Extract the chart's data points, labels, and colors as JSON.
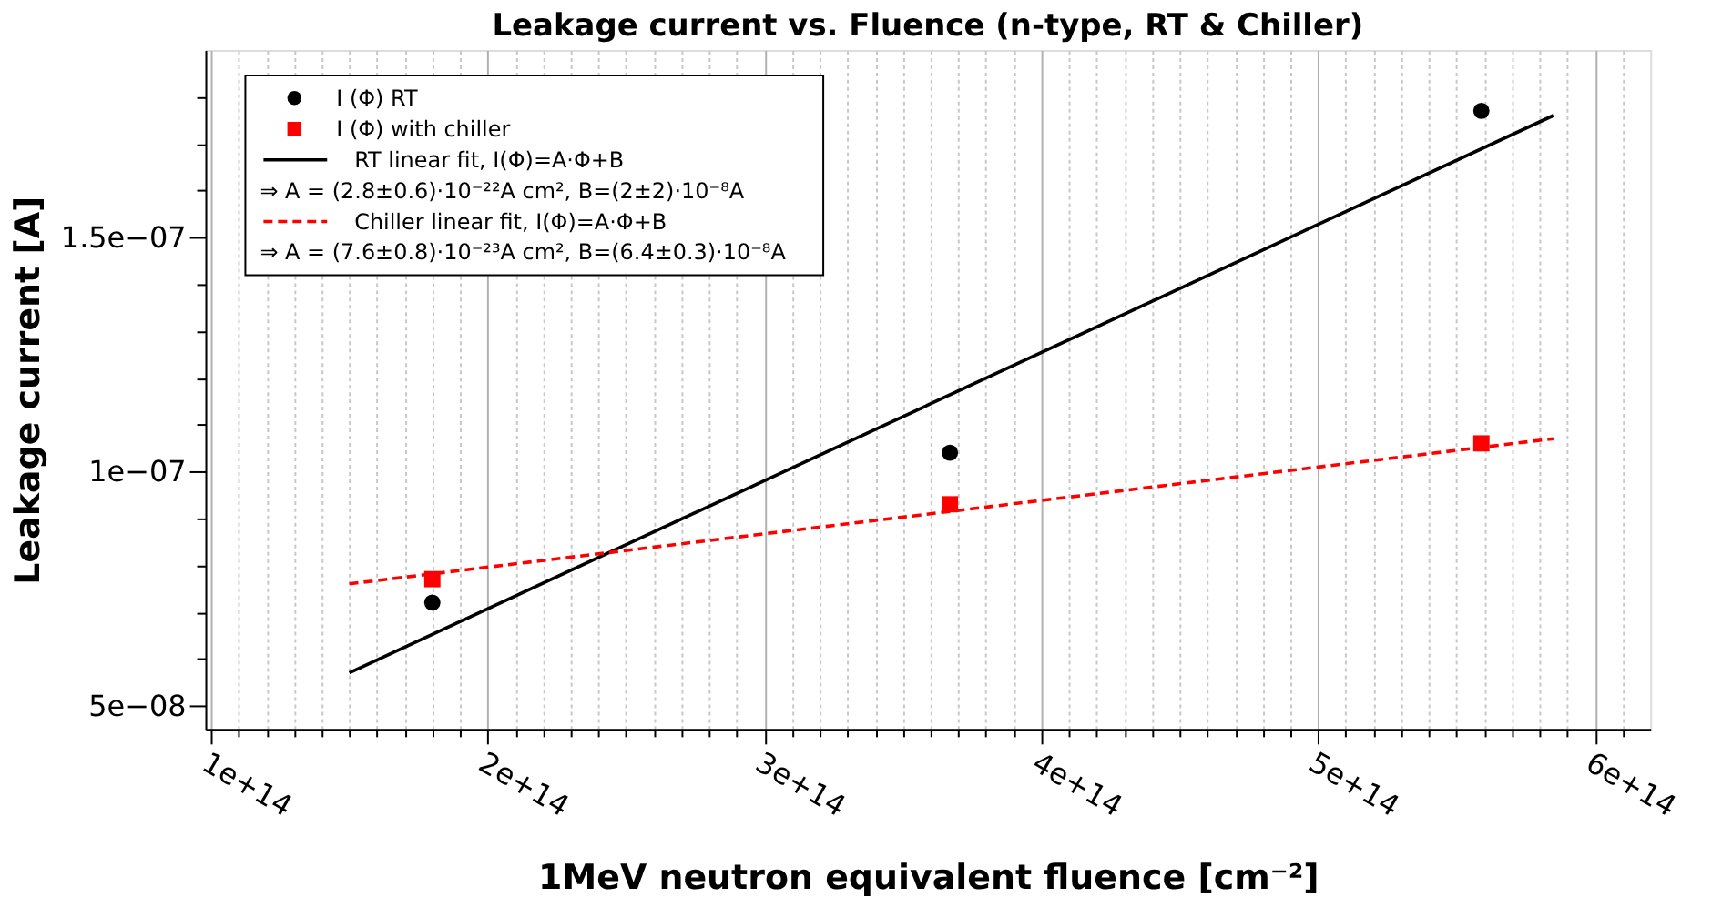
{
  "chart_data": {
    "type": "scatter",
    "title": "Leakage current vs. Fluence (n-type, RT & Chiller)",
    "xlabel": "1MeV neutron equivalent fluence [cm⁻²]",
    "ylabel": "Leakage current [A]",
    "xlim": [
      98000000000000.0,
      620000000000000.0
    ],
    "ylim": [
      4.5e-08,
      1.9e-07
    ],
    "xticks": [
      {
        "value": 100000000000000.0,
        "label": "1e+14"
      },
      {
        "value": 110000000000000.0,
        "label": null
      },
      {
        "value": 120000000000000.0,
        "label": null
      },
      {
        "value": 130000000000000.0,
        "label": null
      },
      {
        "value": 140000000000000.0,
        "label": null
      },
      {
        "value": 150000000000000.0,
        "label": null
      },
      {
        "value": 160000000000000.0,
        "label": null
      },
      {
        "value": 170000000000000.0,
        "label": null
      },
      {
        "value": 180000000000000.0,
        "label": null
      },
      {
        "value": 190000000000000.0,
        "label": null
      },
      {
        "value": 200000000000000.0,
        "label": "2e+14"
      },
      {
        "value": 210000000000000.0,
        "label": null
      },
      {
        "value": 220000000000000.0,
        "label": null
      },
      {
        "value": 230000000000000.0,
        "label": null
      },
      {
        "value": 240000000000000.0,
        "label": null
      },
      {
        "value": 250000000000000.0,
        "label": null
      },
      {
        "value": 260000000000000.0,
        "label": null
      },
      {
        "value": 270000000000000.0,
        "label": null
      },
      {
        "value": 280000000000000.0,
        "label": null
      },
      {
        "value": 290000000000000.0,
        "label": null
      },
      {
        "value": 300000000000000.0,
        "label": "3e+14"
      },
      {
        "value": 310000000000000.0,
        "label": null
      },
      {
        "value": 320000000000000.0,
        "label": null
      },
      {
        "value": 330000000000000.0,
        "label": null
      },
      {
        "value": 340000000000000.0,
        "label": null
      },
      {
        "value": 350000000000000.0,
        "label": null
      },
      {
        "value": 360000000000000.0,
        "label": null
      },
      {
        "value": 370000000000000.0,
        "label": null
      },
      {
        "value": 380000000000000.0,
        "label": null
      },
      {
        "value": 390000000000000.0,
        "label": null
      },
      {
        "value": 400000000000000.0,
        "label": "4e+14"
      },
      {
        "value": 410000000000000.0,
        "label": null
      },
      {
        "value": 420000000000000.0,
        "label": null
      },
      {
        "value": 430000000000000.0,
        "label": null
      },
      {
        "value": 440000000000000.0,
        "label": null
      },
      {
        "value": 450000000000000.0,
        "label": null
      },
      {
        "value": 460000000000000.0,
        "label": null
      },
      {
        "value": 470000000000000.0,
        "label": null
      },
      {
        "value": 480000000000000.0,
        "label": null
      },
      {
        "value": 490000000000000.0,
        "label": null
      },
      {
        "value": 500000000000000.0,
        "label": "5e+14"
      },
      {
        "value": 510000000000000.0,
        "label": null
      },
      {
        "value": 520000000000000.0,
        "label": null
      },
      {
        "value": 530000000000000.0,
        "label": null
      },
      {
        "value": 540000000000000.0,
        "label": null
      },
      {
        "value": 550000000000000.0,
        "label": null
      },
      {
        "value": 560000000000000.0,
        "label": null
      },
      {
        "value": 570000000000000.0,
        "label": null
      },
      {
        "value": 580000000000000.0,
        "label": null
      },
      {
        "value": 590000000000000.0,
        "label": null
      },
      {
        "value": 600000000000000.0,
        "label": "6e+14"
      },
      {
        "value": 610000000000000.0,
        "label": null
      }
    ],
    "yticks": [
      {
        "value": 5e-08,
        "label": "5e−08"
      },
      {
        "value": 6e-08,
        "label": null
      },
      {
        "value": 7e-08,
        "label": null
      },
      {
        "value": 8e-08,
        "label": null
      },
      {
        "value": 9e-08,
        "label": null
      },
      {
        "value": 1e-07,
        "label": "1e−07"
      },
      {
        "value": 1.1e-07,
        "label": null
      },
      {
        "value": 1.2e-07,
        "label": null
      },
      {
        "value": 1.3e-07,
        "label": null
      },
      {
        "value": 1.4e-07,
        "label": null
      },
      {
        "value": 1.5e-07,
        "label": "1.5e−07"
      },
      {
        "value": 1.6e-07,
        "label": null
      },
      {
        "value": 1.7e-07,
        "label": null
      },
      {
        "value": 1.8e-07,
        "label": null
      }
    ],
    "grid": "x",
    "legend": "top left",
    "series": [
      {
        "name": "I (Φ) RT",
        "type": "scatter",
        "marker": "circle",
        "color": "#000000",
        "x": [
          180000000000000.0,
          367000000000000.0,
          559000000000000.0
        ],
        "values": [
          7.2e-08,
          1.04e-07,
          1.77e-07
        ]
      },
      {
        "name": "I (Φ) with chiller",
        "type": "scatter",
        "marker": "square",
        "color": "#ff0000",
        "x": [
          180000000000000.0,
          367000000000000.0,
          559000000000000.0
        ],
        "values": [
          7.7e-08,
          9.3e-08,
          1.06e-07
        ]
      },
      {
        "name": "RT linear fit, I(Φ)=A·Φ+B",
        "type": "line",
        "line_style": "solid",
        "color": "#000000",
        "x": [
          150000000000000.0,
          585000000000000.0
        ],
        "values": [
          5.7e-08,
          1.76e-07
        ]
      },
      {
        "name": "Chiller linear fit, I(Φ)=A·Φ+B",
        "type": "line",
        "line_style": "dashed",
        "color": "#ff0000",
        "x": [
          150000000000000.0,
          585000000000000.0
        ],
        "values": [
          7.6e-08,
          1.07e-07
        ]
      }
    ],
    "annotations": [
      "⇒ A = (2.8±0.6)·10⁻²²A cm², B=(2±2)·10⁻⁸A",
      "⇒ A = (7.6±0.8)·10⁻²³A cm², B=(6.4±0.3)·10⁻⁸A"
    ]
  }
}
